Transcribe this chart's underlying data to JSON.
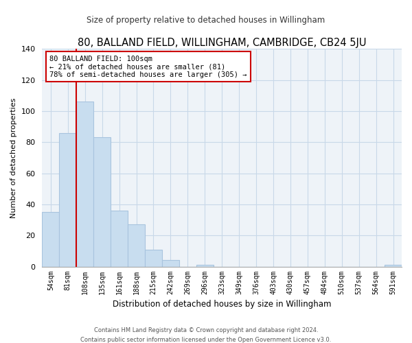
{
  "title": "80, BALLAND FIELD, WILLINGHAM, CAMBRIDGE, CB24 5JU",
  "subtitle": "Size of property relative to detached houses in Willingham",
  "xlabel": "Distribution of detached houses by size in Willingham",
  "ylabel": "Number of detached properties",
  "bar_labels": [
    "54sqm",
    "81sqm",
    "108sqm",
    "135sqm",
    "161sqm",
    "188sqm",
    "215sqm",
    "242sqm",
    "269sqm",
    "296sqm",
    "323sqm",
    "349sqm",
    "376sqm",
    "403sqm",
    "430sqm",
    "457sqm",
    "484sqm",
    "510sqm",
    "537sqm",
    "564sqm",
    "591sqm"
  ],
  "bar_values": [
    35,
    86,
    106,
    83,
    36,
    27,
    11,
    4,
    0,
    1,
    0,
    0,
    0,
    0,
    0,
    0,
    0,
    0,
    0,
    0,
    1
  ],
  "bar_color": "#c8ddef",
  "bar_edge_color": "#a8c4de",
  "ylim": [
    0,
    140
  ],
  "yticks": [
    0,
    20,
    40,
    60,
    80,
    100,
    120,
    140
  ],
  "vline_x": 1.5,
  "vline_color": "#cc0000",
  "annotation_text_line1": "80 BALLAND FIELD: 100sqm",
  "annotation_text_line2": "← 21% of detached houses are smaller (81)",
  "annotation_text_line3": "78% of semi-detached houses are larger (305) →",
  "annotation_box_color": "#ffffff",
  "annotation_box_edgecolor": "#cc0000",
  "footer_line1": "Contains HM Land Registry data © Crown copyright and database right 2024.",
  "footer_line2": "Contains public sector information licensed under the Open Government Licence v3.0.",
  "background_color": "#ffffff",
  "plot_bg_color": "#eef3f8",
  "grid_color": "#c8d8e8"
}
